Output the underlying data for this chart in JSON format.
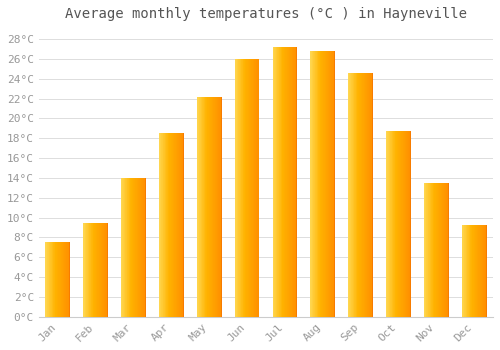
{
  "title": "Average monthly temperatures (°C ) in Hayneville",
  "months": [
    "Jan",
    "Feb",
    "Mar",
    "Apr",
    "May",
    "Jun",
    "Jul",
    "Aug",
    "Sep",
    "Oct",
    "Nov",
    "Dec"
  ],
  "values": [
    7.5,
    9.5,
    14.0,
    18.5,
    22.2,
    26.0,
    27.2,
    26.8,
    24.6,
    18.7,
    13.5,
    9.3
  ],
  "bar_color_left": "#FFD54F",
  "bar_color_right": "#FFA000",
  "bar_color_mid": "#FFB300",
  "ylim": [
    0,
    29
  ],
  "ytick_step": 2,
  "background_color": "#FFFFFF",
  "plot_bg_color": "#FFFFFF",
  "grid_color": "#DDDDDD",
  "title_fontsize": 10,
  "tick_fontsize": 8,
  "tick_label_color": "#999999",
  "font_family": "monospace",
  "bar_width": 0.65
}
